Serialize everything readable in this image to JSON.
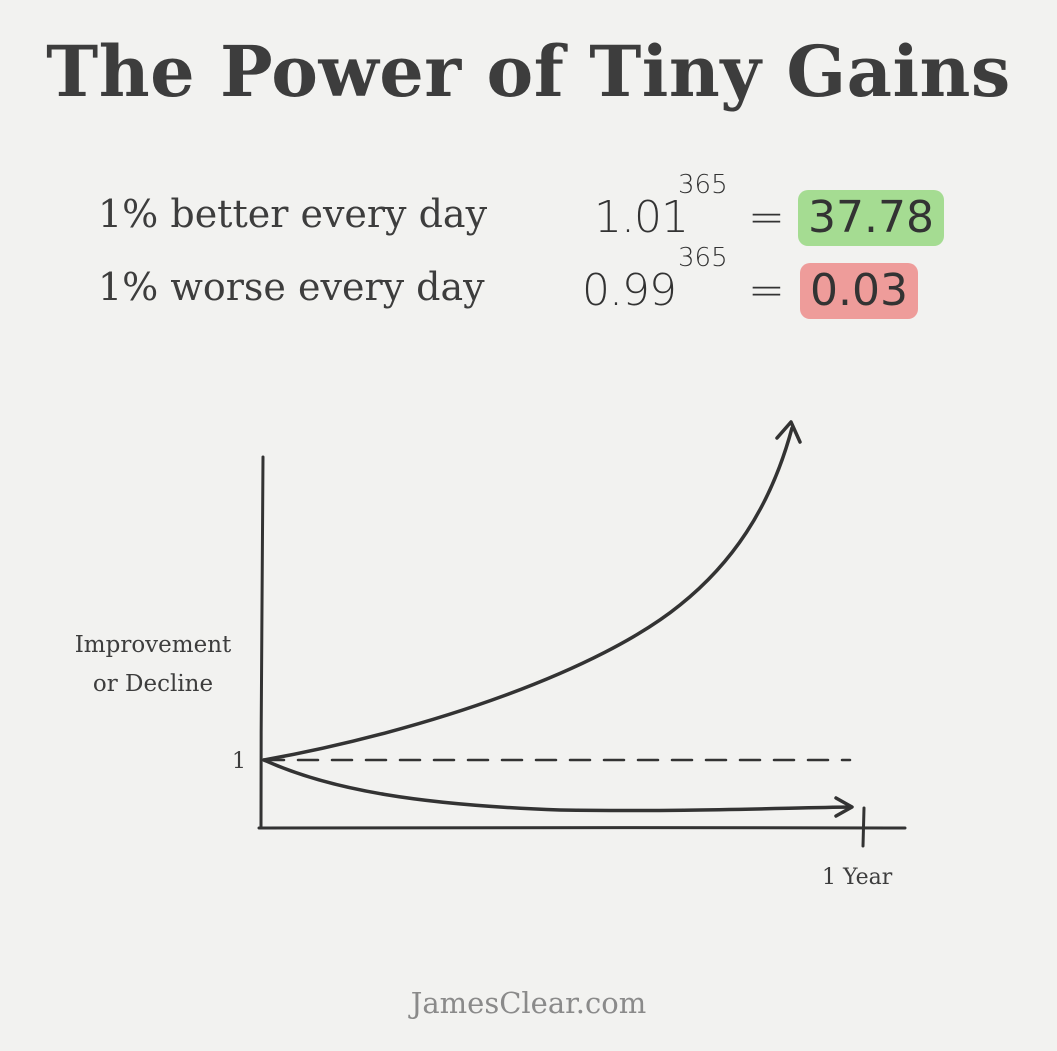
{
  "title": "The Power of Tiny Gains",
  "equations": [
    {
      "label": "1% better every day",
      "base": "1.01",
      "exponent": "365",
      "equals": "=",
      "result": "37.78",
      "highlight_color": "#a5dc92"
    },
    {
      "label": "1% worse every day",
      "base": "0.99",
      "exponent": "365",
      "equals": "=",
      "result": "0.03",
      "highlight_color": "#ee9c9a"
    }
  ],
  "chart": {
    "y_axis_label": "Improvement\nor Decline",
    "y_tick_label": "1",
    "x_tick_label": "1 Year",
    "line_color": "#333333"
  },
  "footer": "JamesClear.com"
}
